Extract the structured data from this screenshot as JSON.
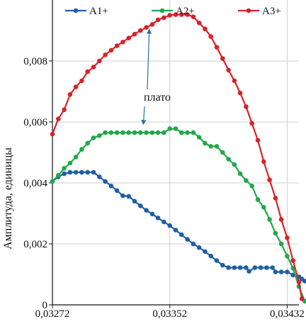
{
  "chart_data": {
    "type": "line",
    "title": "",
    "xlabel": "",
    "ylabel": "Амплитуда, единицы",
    "xlim": [
      0.03272,
      0.0344
    ],
    "ylim": [
      0,
      0.01
    ],
    "x_ticks": [
      0.03272,
      0.03352,
      0.03432
    ],
    "x_tick_labels": [
      "0,03272",
      "0,03352",
      "0,03432"
    ],
    "y_ticks": [
      0,
      0.002,
      0.004,
      0.006,
      0.008
    ],
    "y_tick_labels": [
      "0",
      "0,002",
      "0,004",
      "0,006",
      "0,008"
    ],
    "grid": {
      "x": true,
      "y": true
    },
    "legend_position": "top",
    "annotation": {
      "text": "плато",
      "targets": [
        {
          "x": 0.03338,
          "y": 0.00903
        },
        {
          "x": 0.03334,
          "y": 0.00593
        }
      ]
    },
    "series": [
      {
        "name": "A1+",
        "color": "#1f5fa6",
        "points": [
          [
            0.03272,
            0.00405
          ],
          [
            0.03276,
            0.0042
          ],
          [
            0.0328,
            0.0043
          ],
          [
            0.03284,
            0.00435
          ],
          [
            0.03288,
            0.00435
          ],
          [
            0.03292,
            0.00435
          ],
          [
            0.03296,
            0.00435
          ],
          [
            0.033,
            0.00435
          ],
          [
            0.03304,
            0.0042
          ],
          [
            0.03308,
            0.00405
          ],
          [
            0.03312,
            0.0039
          ],
          [
            0.03316,
            0.00375
          ],
          [
            0.0332,
            0.00358
          ],
          [
            0.03324,
            0.00356
          ],
          [
            0.03328,
            0.0034
          ],
          [
            0.03332,
            0.00325
          ],
          [
            0.03336,
            0.0031
          ],
          [
            0.0334,
            0.00298
          ],
          [
            0.03344,
            0.00285
          ],
          [
            0.03348,
            0.00272
          ],
          [
            0.03352,
            0.0026
          ],
          [
            0.03356,
            0.00245
          ],
          [
            0.0336,
            0.0023
          ],
          [
            0.03364,
            0.00215
          ],
          [
            0.03368,
            0.002
          ],
          [
            0.03372,
            0.00188
          ],
          [
            0.03376,
            0.00175
          ],
          [
            0.0338,
            0.0016
          ],
          [
            0.03384,
            0.00145
          ],
          [
            0.03388,
            0.0013
          ],
          [
            0.03392,
            0.00122
          ],
          [
            0.03396,
            0.00122
          ],
          [
            0.034,
            0.00122
          ],
          [
            0.03404,
            0.00122
          ],
          [
            0.03406,
            0.0011
          ],
          [
            0.0341,
            0.00122
          ],
          [
            0.03414,
            0.00122
          ],
          [
            0.03418,
            0.00122
          ],
          [
            0.03422,
            0.00122
          ],
          [
            0.03424,
            0.00108
          ],
          [
            0.03428,
            0.00108
          ],
          [
            0.03432,
            0.00108
          ],
          [
            0.03436,
            0.00098
          ],
          [
            0.0344,
            0.00092
          ],
          [
            0.03442,
            0.00085
          ],
          [
            0.03444,
            0.00078
          ]
        ]
      },
      {
        "name": "A2+",
        "color": "#22a84a",
        "points": [
          [
            0.03272,
            0.00405
          ],
          [
            0.03276,
            0.00425
          ],
          [
            0.0328,
            0.00448
          ],
          [
            0.03284,
            0.00465
          ],
          [
            0.03288,
            0.00485
          ],
          [
            0.03292,
            0.0051
          ],
          [
            0.03296,
            0.0053
          ],
          [
            0.033,
            0.00548
          ],
          [
            0.03304,
            0.00555
          ],
          [
            0.03308,
            0.00565
          ],
          [
            0.03312,
            0.00565
          ],
          [
            0.03316,
            0.00565
          ],
          [
            0.0332,
            0.00565
          ],
          [
            0.03324,
            0.00565
          ],
          [
            0.03328,
            0.00565
          ],
          [
            0.03332,
            0.00565
          ],
          [
            0.03336,
            0.00565
          ],
          [
            0.0334,
            0.00565
          ],
          [
            0.03344,
            0.00565
          ],
          [
            0.03348,
            0.00565
          ],
          [
            0.03352,
            0.00578
          ],
          [
            0.03356,
            0.00578
          ],
          [
            0.0336,
            0.00565
          ],
          [
            0.03364,
            0.00565
          ],
          [
            0.03368,
            0.00565
          ],
          [
            0.03372,
            0.0055
          ],
          [
            0.03376,
            0.0053
          ],
          [
            0.0338,
            0.0052
          ],
          [
            0.03384,
            0.0052
          ],
          [
            0.03388,
            0.005
          ],
          [
            0.03392,
            0.00478
          ],
          [
            0.03396,
            0.0046
          ],
          [
            0.034,
            0.0043
          ],
          [
            0.03404,
            0.00408
          ],
          [
            0.03408,
            0.0039
          ],
          [
            0.03412,
            0.00345
          ],
          [
            0.03416,
            0.0032
          ],
          [
            0.0342,
            0.0028
          ],
          [
            0.03424,
            0.00235
          ],
          [
            0.03428,
            0.002
          ],
          [
            0.03432,
            0.0016
          ],
          [
            0.03436,
            0.0012
          ],
          [
            0.0344,
            0.0006
          ],
          [
            0.03444,
            0.00012
          ]
        ]
      },
      {
        "name": "A3+",
        "color": "#d8232a",
        "points": [
          [
            0.03272,
            0.0056
          ],
          [
            0.03276,
            0.0061
          ],
          [
            0.0328,
            0.0064
          ],
          [
            0.03284,
            0.0069
          ],
          [
            0.03288,
            0.00715
          ],
          [
            0.03292,
            0.00735
          ],
          [
            0.03296,
            0.00765
          ],
          [
            0.033,
            0.0078
          ],
          [
            0.03304,
            0.008
          ],
          [
            0.03308,
            0.0082
          ],
          [
            0.03312,
            0.00835
          ],
          [
            0.03316,
            0.0085
          ],
          [
            0.0332,
            0.00862
          ],
          [
            0.03324,
            0.00875
          ],
          [
            0.03328,
            0.00888
          ],
          [
            0.03332,
            0.009
          ],
          [
            0.03336,
            0.0091
          ],
          [
            0.0334,
            0.0092
          ],
          [
            0.03344,
            0.00935
          ],
          [
            0.03348,
            0.00942
          ],
          [
            0.03352,
            0.0095
          ],
          [
            0.03356,
            0.00952
          ],
          [
            0.0336,
            0.00952
          ],
          [
            0.03364,
            0.00952
          ],
          [
            0.03368,
            0.00945
          ],
          [
            0.03372,
            0.00925
          ],
          [
            0.03376,
            0.00905
          ],
          [
            0.0338,
            0.0088
          ],
          [
            0.03384,
            0.00845
          ],
          [
            0.03388,
            0.00808
          ],
          [
            0.03392,
            0.0077
          ],
          [
            0.03396,
            0.00735
          ],
          [
            0.034,
            0.00695
          ],
          [
            0.03404,
            0.0065
          ],
          [
            0.03408,
            0.00595
          ],
          [
            0.03412,
            0.0054
          ],
          [
            0.03416,
            0.0047
          ],
          [
            0.0342,
            0.0041
          ],
          [
            0.03424,
            0.0035
          ],
          [
            0.03428,
            0.0028
          ],
          [
            0.03432,
            0.0022
          ],
          [
            0.03436,
            0.00145
          ],
          [
            0.0344,
            0.00075
          ],
          [
            0.03442,
            0.0002
          ]
        ]
      }
    ]
  }
}
